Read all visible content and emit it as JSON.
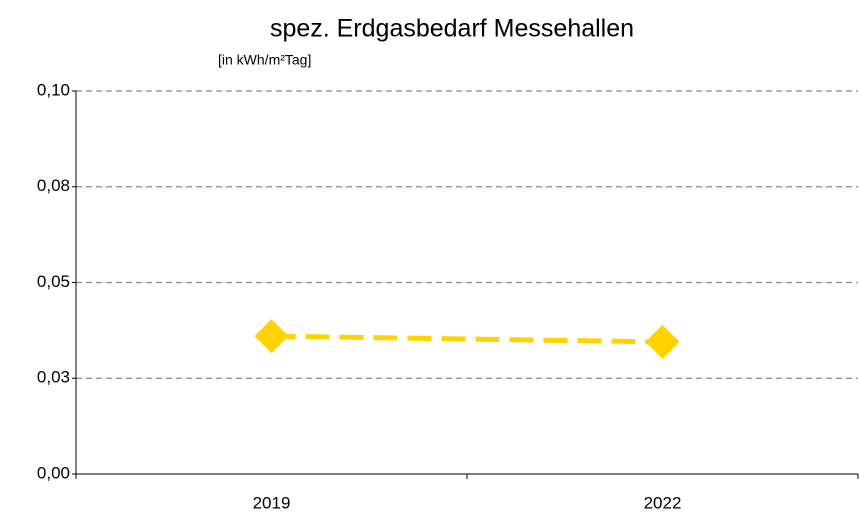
{
  "chart_data": {
    "type": "line",
    "title": "spez. Erdgasbedarf Messehallen",
    "subtitle": "[in kWh/m²Tag]",
    "categories": [
      "2019",
      "2022"
    ],
    "series": [
      {
        "name": "spez. Erdgasbedarf",
        "color": "#FFD200",
        "values": [
          0.036,
          0.0345
        ]
      }
    ],
    "ylim": [
      0,
      0.1
    ],
    "yticks": [
      {
        "value": 0,
        "label": "0,00"
      },
      {
        "value": 0.025,
        "label": "0,03"
      },
      {
        "value": 0.05,
        "label": "0,05"
      },
      {
        "value": 0.075,
        "label": "0,08"
      },
      {
        "value": 0.1,
        "label": "0,10"
      }
    ],
    "grid": true
  }
}
